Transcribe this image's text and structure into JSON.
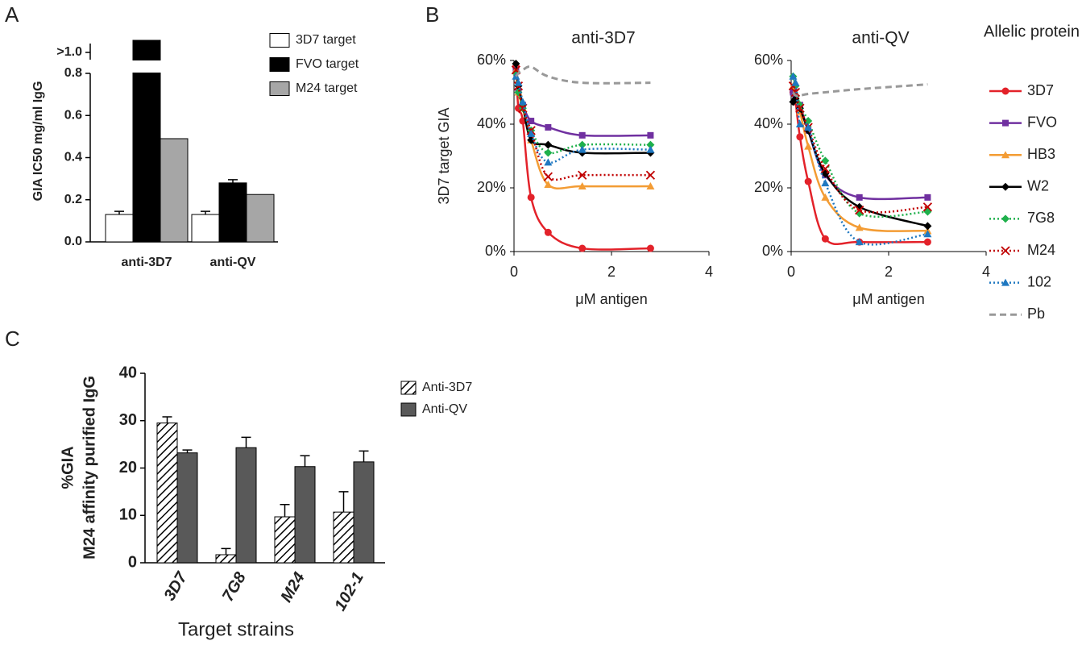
{
  "chart_data": [
    {
      "type": "bar",
      "panel": "A",
      "y_label": "GIA IC50 mg/ml IgG",
      "categories": [
        "anti-3D7",
        "anti-QV"
      ],
      "series": [
        {
          "name": "3D7 target",
          "color": "#ffffff",
          "values": [
            0.13,
            0.13
          ],
          "errors": [
            0.015,
            0.015
          ]
        },
        {
          "name": "FVO target",
          "color": "#000000",
          "values": [
            1.1,
            0.28
          ],
          "errors": [
            null,
            0.015
          ]
        },
        {
          "name": "M24 target",
          "color": "#a6a6a6",
          "values": [
            0.49,
            0.225
          ],
          "errors": [
            null,
            null
          ]
        }
      ],
      "ylim": [
        0,
        1.1
      ],
      "yticks": [
        {
          "value": 0,
          "label": "0.0"
        },
        0.2,
        0.4,
        0.6,
        0.8,
        {
          "value": 1,
          "label": ">1.0"
        }
      ],
      "legend": "top-right"
    },
    {
      "type": "line",
      "panel": "B",
      "title": "anti-3D7",
      "y_label": "3D7 target GIA",
      "x_label": "μM antigen",
      "x": [
        0.04,
        0.09,
        0.18,
        0.35,
        0.7,
        1.4,
        2.8
      ],
      "xlim": [
        0,
        4
      ],
      "xticks": [
        0,
        2,
        4
      ],
      "ylim": [
        0,
        60
      ],
      "yticks": [
        {
          "value": 0,
          "label": "0%"
        },
        {
          "value": 20,
          "label": "20%"
        },
        {
          "value": 40,
          "label": "40%"
        },
        {
          "value": 60,
          "label": "60%"
        }
      ],
      "series": [
        {
          "color": "#e3222a",
          "marker": "circle",
          "dash": "solid",
          "values": [
            58,
            45,
            41,
            17,
            6,
            1,
            1
          ]
        },
        {
          "color": "#7030a0",
          "marker": "square",
          "dash": "solid",
          "values": [
            57,
            50,
            46,
            41,
            39,
            36.5,
            36.5
          ]
        },
        {
          "color": "#f39c34",
          "marker": "triangle",
          "dash": "solid",
          "values": [
            57,
            50,
            45,
            35,
            21,
            20.5,
            20.5
          ]
        },
        {
          "color": "#000000",
          "marker": "diamond",
          "dash": "solid",
          "values": [
            59,
            52,
            46,
            35,
            33.5,
            31,
            31
          ]
        },
        {
          "color": "#1fb04c",
          "marker": "diamond",
          "dash": "dotted",
          "values": [
            56,
            50,
            45,
            38,
            31,
            33.5,
            33.5
          ]
        },
        {
          "color": "#c00000",
          "marker": "x",
          "dash": "dotted",
          "values": [
            57,
            52,
            45,
            38,
            23.5,
            24,
            24
          ]
        },
        {
          "color": "#1f78c1",
          "marker": "triangle",
          "dash": "dotted",
          "values": [
            55,
            53,
            47,
            37,
            28,
            32,
            32
          ]
        },
        {
          "color": "#999999",
          "marker": "none",
          "dash": "dashed",
          "values": [
            55,
            56,
            57,
            58,
            55,
            53,
            53
          ]
        }
      ]
    },
    {
      "type": "bar",
      "panel": "C",
      "y_label": [
        "%GIA",
        "M24 affinity purified IgG"
      ],
      "x_label": "Target strains",
      "categories": [
        "3D7",
        "7G8",
        "M24",
        "102-1"
      ],
      "series": [
        {
          "name": "Anti-3D7",
          "color": "#000000",
          "pattern": "hatch",
          "values": [
            29.5,
            1.7,
            9.7,
            10.7
          ],
          "errors": [
            1.3,
            1.3,
            2.6,
            4.3
          ]
        },
        {
          "name": "Anti-QV",
          "color": "#595959",
          "values": [
            23.2,
            24.3,
            20.3,
            21.3
          ],
          "errors": [
            0.6,
            2.2,
            2.3,
            2.3
          ]
        }
      ],
      "ylim": [
        0,
        40
      ],
      "yticks": [
        0,
        10,
        20,
        30,
        40
      ],
      "legend": "top-right"
    },
    {
      "type": "line",
      "title": "anti-QV",
      "x_label": "μM antigen",
      "legend_title": "Allelic protein",
      "x": [
        0.04,
        0.09,
        0.18,
        0.35,
        0.7,
        1.4,
        2.8
      ],
      "xlim": [
        0,
        4
      ],
      "xticks": [
        0,
        2,
        4
      ],
      "ylim": [
        0,
        60
      ],
      "yticks": [
        {
          "value": 0,
          "label": "0%"
        },
        {
          "value": 20,
          "label": "20%"
        },
        {
          "value": 40,
          "label": "40%"
        },
        {
          "value": 60,
          "label": "60%"
        }
      ],
      "series": [
        {
          "name": "3D7",
          "color": "#e3222a",
          "marker": "circle",
          "dash": "solid",
          "values": [
            50,
            47,
            36,
            22,
            4,
            3,
            3
          ]
        },
        {
          "name": "FVO",
          "color": "#7030a0",
          "marker": "square",
          "dash": "solid",
          "values": [
            50,
            48,
            46,
            38,
            24,
            17,
            17
          ]
        },
        {
          "name": "HB3",
          "color": "#f39c34",
          "marker": "triangle",
          "dash": "solid",
          "values": [
            52,
            48,
            44,
            33,
            17,
            7.5,
            6.5
          ]
        },
        {
          "name": "W2",
          "color": "#000000",
          "marker": "diamond",
          "dash": "solid",
          "values": [
            47,
            48,
            45,
            38,
            24.5,
            14,
            8
          ]
        },
        {
          "name": "7G8",
          "color": "#1fb04c",
          "marker": "diamond",
          "dash": "dotted",
          "values": [
            55,
            52,
            46,
            41,
            28.5,
            12,
            12.5
          ]
        },
        {
          "name": "M24",
          "color": "#c00000",
          "marker": "x",
          "dash": "dotted",
          "values": [
            52,
            50,
            45,
            39,
            26,
            13,
            14
          ]
        },
        {
          "name": "102",
          "color": "#1f78c1",
          "marker": "triangle",
          "dash": "dotted",
          "values": [
            55,
            53,
            40,
            39,
            21.5,
            3,
            5.5
          ]
        },
        {
          "name": "Pb",
          "color": "#999999",
          "marker": "none",
          "dash": "dashed",
          "values": [
            50,
            49,
            49,
            49.5,
            50,
            51,
            52.5
          ]
        }
      ]
    }
  ]
}
